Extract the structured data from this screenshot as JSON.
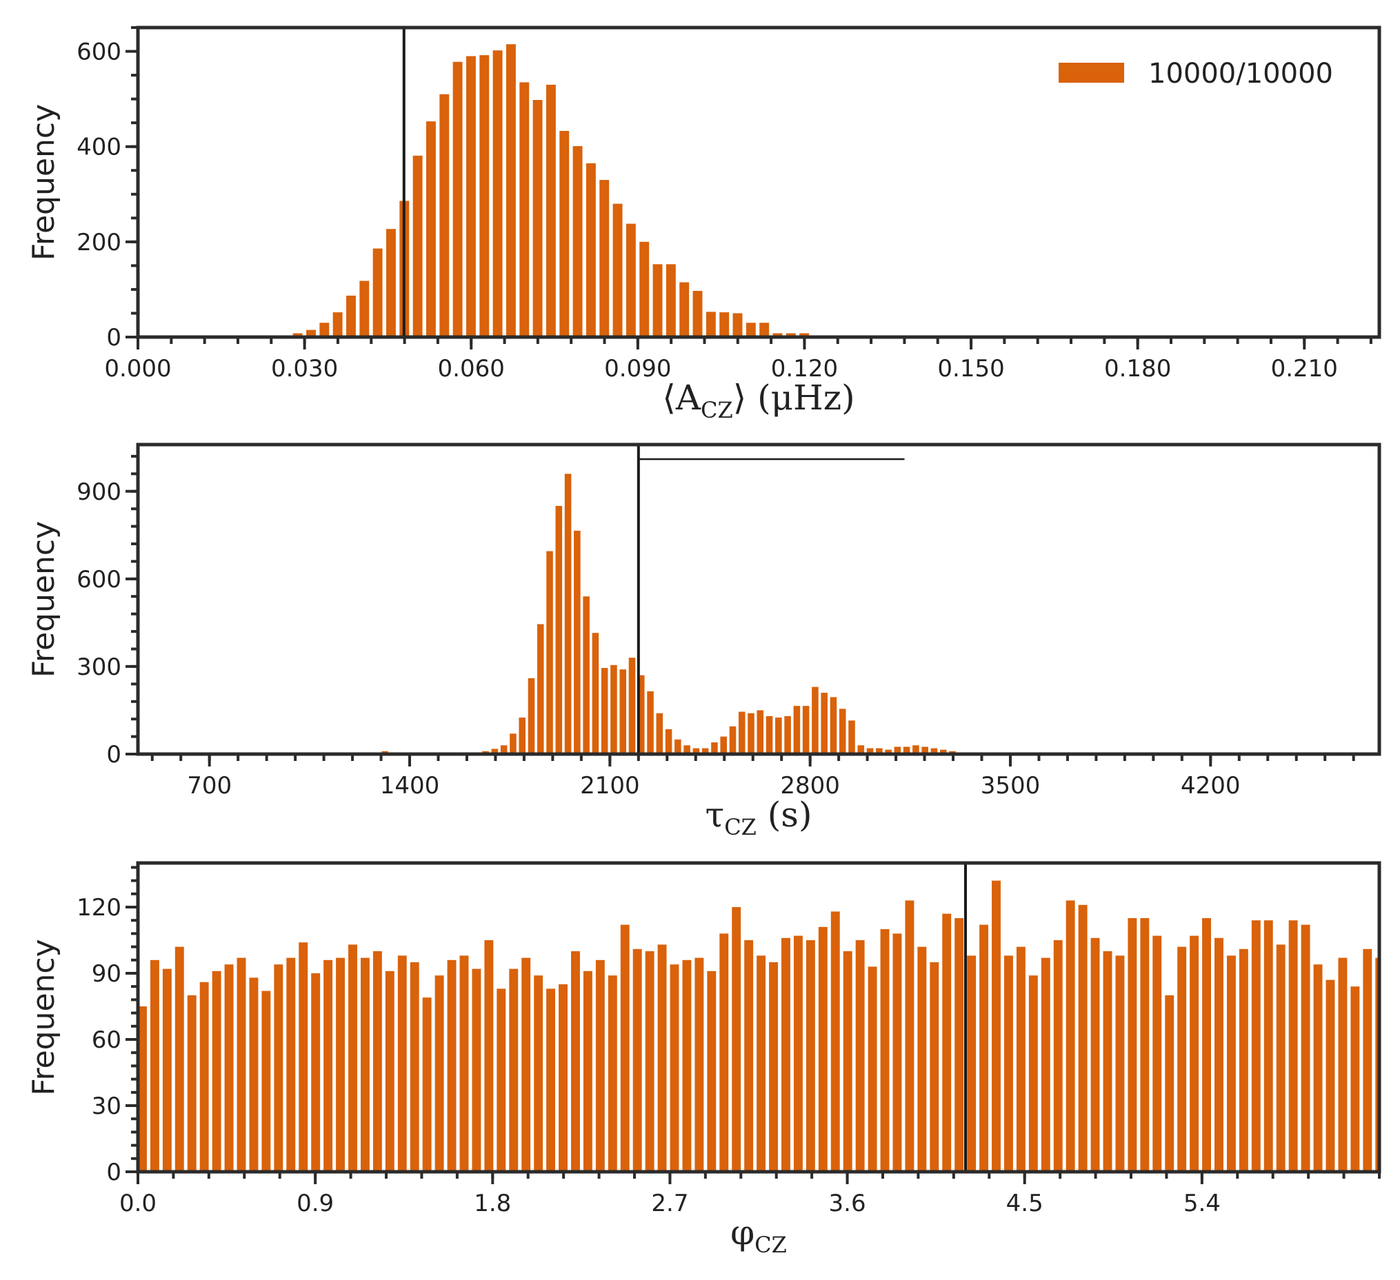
{
  "colors": {
    "bar": "#d9620b",
    "axis": "#2b2b2b",
    "marker": "#1a1a1a"
  },
  "chart_data": [
    {
      "type": "bar",
      "ylabel": "Frequency",
      "xlabel": "⟨A_CZ⟩ (μHz)",
      "xlabel_parts": {
        "pre": "⟨A",
        "sub": "CZ",
        "post": "⟩ (μHz)"
      },
      "xlim": [
        0.0,
        0.2235
      ],
      "ylim": [
        0,
        650
      ],
      "xticks": [
        0.0,
        0.03,
        0.06,
        0.09,
        0.12,
        0.15,
        0.18,
        0.21
      ],
      "xtick_labels": [
        "0.000",
        "0.030",
        "0.060",
        "0.090",
        "0.120",
        "0.150",
        "0.180",
        "0.210"
      ],
      "xminor_step": 0.006,
      "yticks": [
        0,
        200,
        400,
        600
      ],
      "ytick_labels": [
        "0",
        "200",
        "400",
        "600"
      ],
      "yminor_step": 50,
      "bin_start": 0.0015,
      "bin_width": 0.0024,
      "values": [
        0,
        0,
        0,
        0,
        0,
        0,
        0,
        0,
        0,
        0,
        3,
        8,
        15,
        30,
        52,
        87,
        118,
        186,
        227,
        286,
        381,
        453,
        510,
        578,
        590,
        592,
        602,
        615,
        535,
        498,
        530,
        433,
        401,
        365,
        330,
        280,
        238,
        200,
        153,
        153,
        115,
        97,
        53,
        52,
        50,
        30,
        30,
        8,
        8,
        8,
        0,
        0,
        0,
        0,
        0,
        0,
        0,
        0,
        0,
        0,
        0,
        0,
        0,
        0,
        0,
        0,
        0,
        0,
        0,
        0,
        0,
        0,
        0,
        0,
        0,
        0,
        0,
        0,
        0,
        0,
        0,
        0,
        0,
        0,
        0,
        0,
        0,
        0,
        0,
        0,
        0,
        0,
        0
      ],
      "vline": 0.0479,
      "legend": {
        "label": "10000/10000",
        "position": "top-right"
      }
    },
    {
      "type": "bar",
      "ylabel": "Frequency",
      "xlabel": "τ_CZ (s)",
      "xlabel_parts": {
        "pre": "τ",
        "sub": "CZ",
        "post": " (s)"
      },
      "xlim": [
        450,
        4790
      ],
      "ylim": [
        0,
        1060
      ],
      "xticks": [
        700,
        1400,
        2100,
        2800,
        3500,
        4200
      ],
      "xtick_labels": [
        "700",
        "1400",
        "2100",
        "2800",
        "3500",
        "4200"
      ],
      "xminor_step": 100,
      "yticks": [
        0,
        300,
        600,
        900
      ],
      "ytick_labels": [
        "0",
        "300",
        "600",
        "900"
      ],
      "yminor_step": 60,
      "bin_start": 1046,
      "bin_width": 32,
      "values": [
        2,
        0,
        0,
        0,
        0,
        0,
        0,
        0,
        10,
        4,
        0,
        0,
        1,
        1,
        0,
        5,
        5,
        5,
        4,
        10,
        18,
        30,
        70,
        125,
        260,
        445,
        695,
        850,
        960,
        765,
        540,
        415,
        295,
        305,
        290,
        330,
        270,
        215,
        140,
        85,
        50,
        30,
        20,
        20,
        40,
        60,
        95,
        145,
        140,
        150,
        130,
        125,
        130,
        165,
        165,
        230,
        210,
        195,
        155,
        115,
        30,
        20,
        20,
        15,
        25,
        25,
        30,
        25,
        20,
        15,
        10
      ],
      "vline": 2200,
      "hline": {
        "x0": 2200,
        "x1": 3130,
        "y": 1010
      }
    },
    {
      "type": "bar",
      "ylabel": "Frequency",
      "xlabel": "φ_CZ",
      "xlabel_parts": {
        "pre": "φ",
        "sub": "CZ",
        "post": ""
      },
      "xlim": [
        0.0,
        6.3
      ],
      "ylim": [
        0,
        140
      ],
      "xticks": [
        0.0,
        0.9,
        1.8,
        2.7,
        3.6,
        4.5,
        5.4
      ],
      "xtick_labels": [
        "0.0",
        "0.9",
        "1.8",
        "2.7",
        "3.6",
        "4.5",
        "5.4"
      ],
      "xminor_step": 0.18,
      "yticks": [
        0,
        30,
        60,
        90,
        120
      ],
      "ytick_labels": [
        "0",
        "30",
        "60",
        "90",
        "120"
      ],
      "yminor_step": 6,
      "bin_start": 0.0,
      "bin_width": 0.0628,
      "values": [
        75,
        96,
        92,
        102,
        80,
        86,
        91,
        94,
        97,
        88,
        82,
        94,
        97,
        104,
        90,
        96,
        97,
        103,
        97,
        100,
        91,
        98,
        95,
        79,
        89,
        96,
        98,
        92,
        105,
        83,
        92,
        97,
        89,
        83,
        85,
        100,
        91,
        96,
        89,
        112,
        101,
        100,
        103,
        94,
        96,
        97,
        91,
        108,
        120,
        105,
        98,
        95,
        106,
        107,
        105,
        111,
        118,
        100,
        105,
        93,
        110,
        108,
        123,
        102,
        95,
        117,
        115,
        98,
        112,
        132,
        98,
        102,
        89,
        97,
        105,
        123,
        121,
        106,
        100,
        98,
        115,
        115,
        107,
        80,
        102,
        107,
        115,
        106,
        98,
        101,
        114,
        114,
        103,
        114,
        112,
        94,
        87,
        97,
        84,
        101,
        97
      ],
      "vline": 4.2
    }
  ]
}
